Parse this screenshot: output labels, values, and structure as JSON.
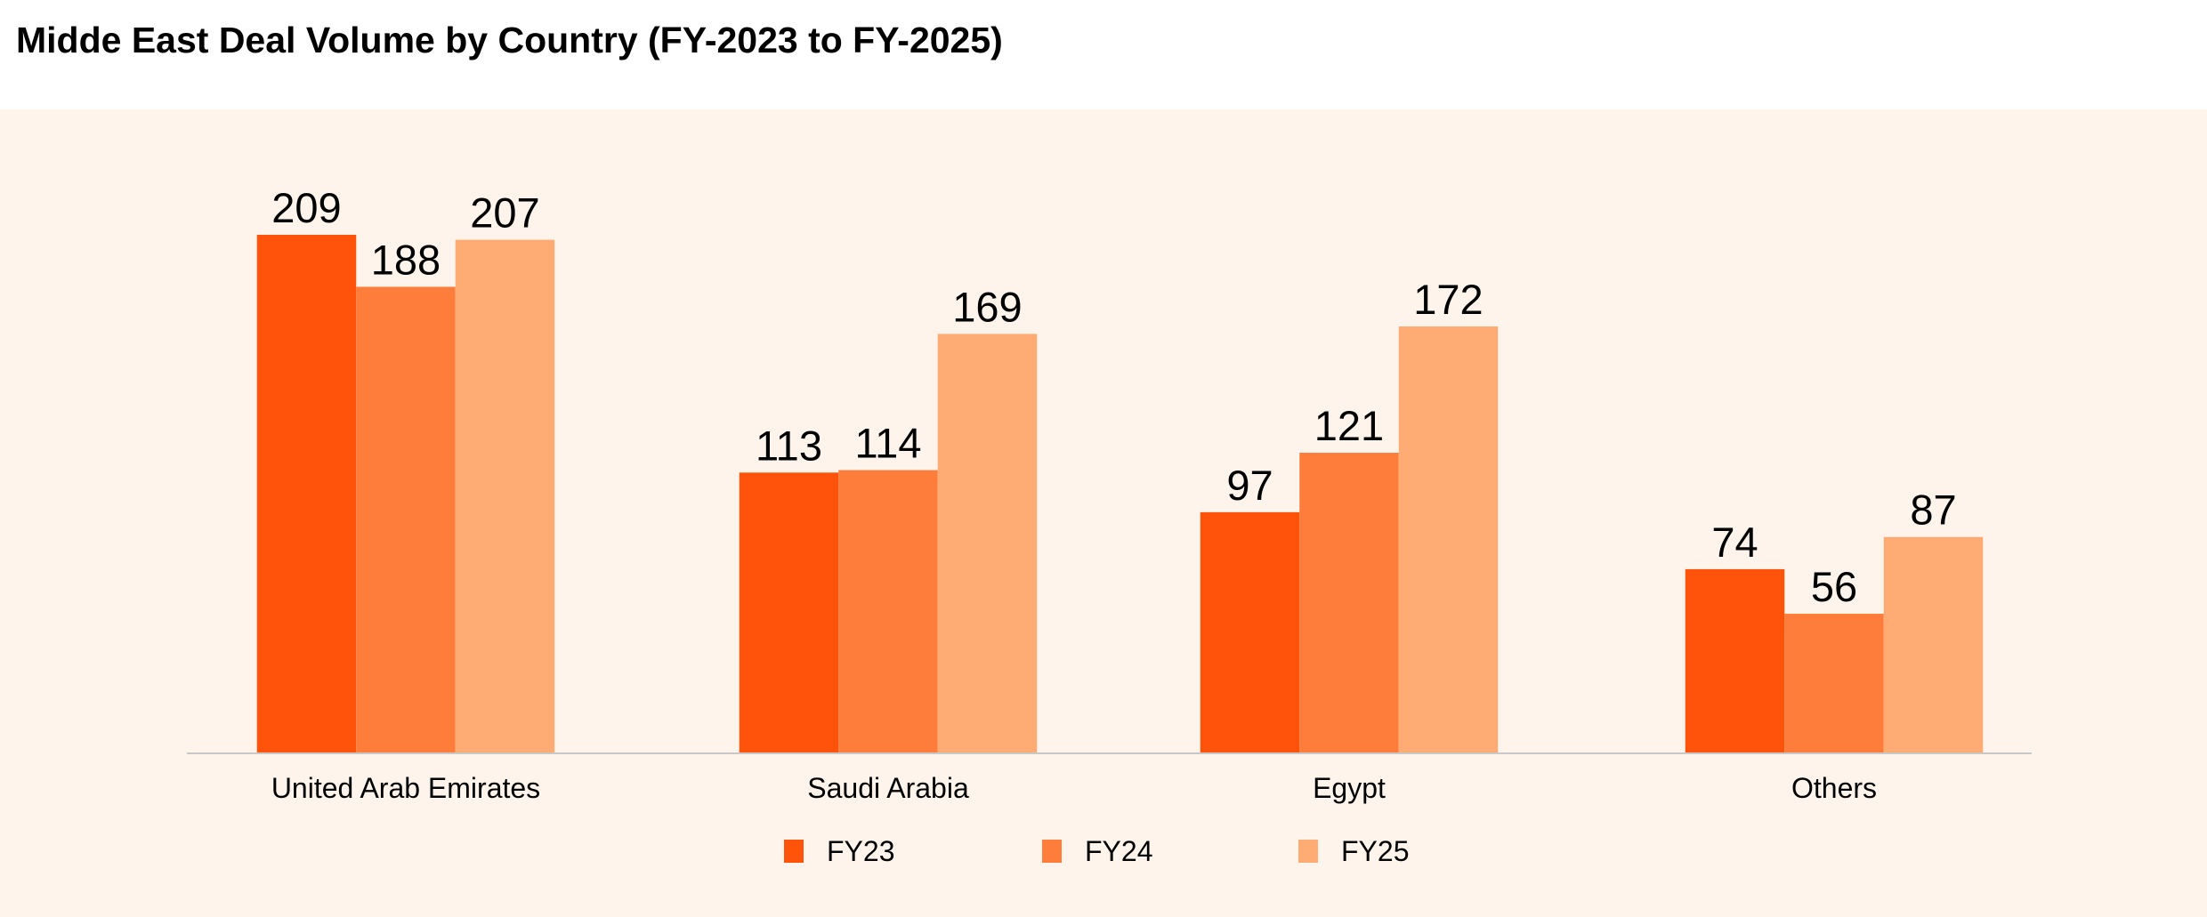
{
  "chart_data": {
    "type": "bar",
    "title": "Midde East Deal Volume by Country (FY-2023 to FY-2025)",
    "categories": [
      "United Arab Emirates",
      "Saudi Arabia",
      "Egypt",
      "Others"
    ],
    "series": [
      {
        "name": "FY23",
        "values": [
          209,
          113,
          97,
          74
        ],
        "color": "#FF520A"
      },
      {
        "name": "FY24",
        "values": [
          188,
          114,
          121,
          56
        ],
        "color": "#FF7D3B"
      },
      {
        "name": "FY25",
        "values": [
          207,
          169,
          172,
          87
        ],
        "color": "#FFAB73"
      }
    ],
    "ylim": [
      0,
      209
    ],
    "grid": false,
    "legend_position": "bottom",
    "background": "#FFF4EC",
    "data_labels": true
  }
}
